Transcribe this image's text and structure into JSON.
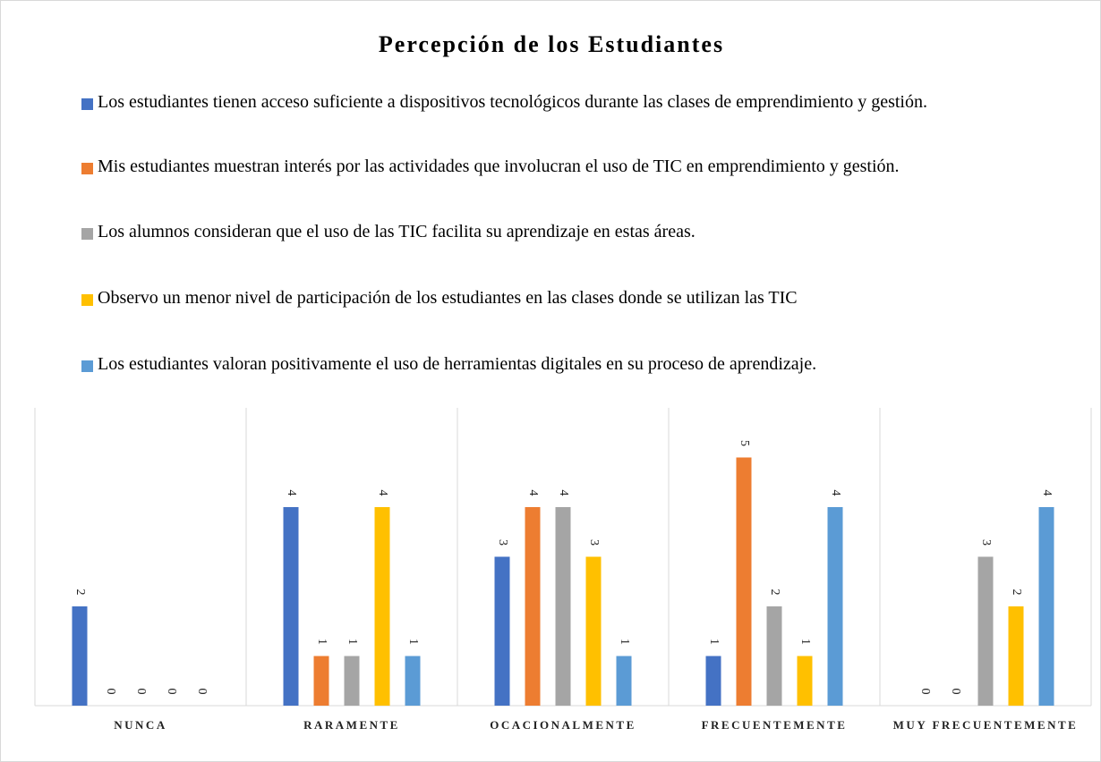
{
  "chart_data": {
    "type": "bar",
    "title": "Percepción de los Estudiantes",
    "categories": [
      "NUNCA",
      "RARAMENTE",
      "OCACIONALMENTE",
      "FRECUENTEMENTE",
      "MUY FRECUENTEMENTE"
    ],
    "series": [
      {
        "name": "Los estudiantes tienen acceso suficiente a dispositivos tecnológicos durante las clases de emprendimiento y gestión.",
        "color": "#4472c4",
        "values": [
          2,
          4,
          3,
          1,
          0
        ]
      },
      {
        "name": "Mis estudiantes muestran interés por las actividades que involucran el uso de TIC en emprendimiento y gestión.",
        "color": "#ed7d31",
        "values": [
          0,
          1,
          4,
          5,
          0
        ]
      },
      {
        "name": "Los alumnos consideran que el uso de las TIC facilita su aprendizaje en estas áreas.",
        "color": "#a5a5a5",
        "values": [
          0,
          1,
          4,
          2,
          3
        ]
      },
      {
        "name": "Observo un menor nivel de participación de los estudiantes en las clases donde se utilizan las TIC",
        "color": "#ffc000",
        "values": [
          0,
          4,
          3,
          1,
          2
        ]
      },
      {
        "name": "Los estudiantes valoran positivamente el uso de herramientas digitales en su proceso de aprendizaje.",
        "color": "#5b9bd5",
        "values": [
          0,
          1,
          1,
          4,
          4
        ]
      }
    ],
    "ylim": [
      0,
      6
    ]
  }
}
